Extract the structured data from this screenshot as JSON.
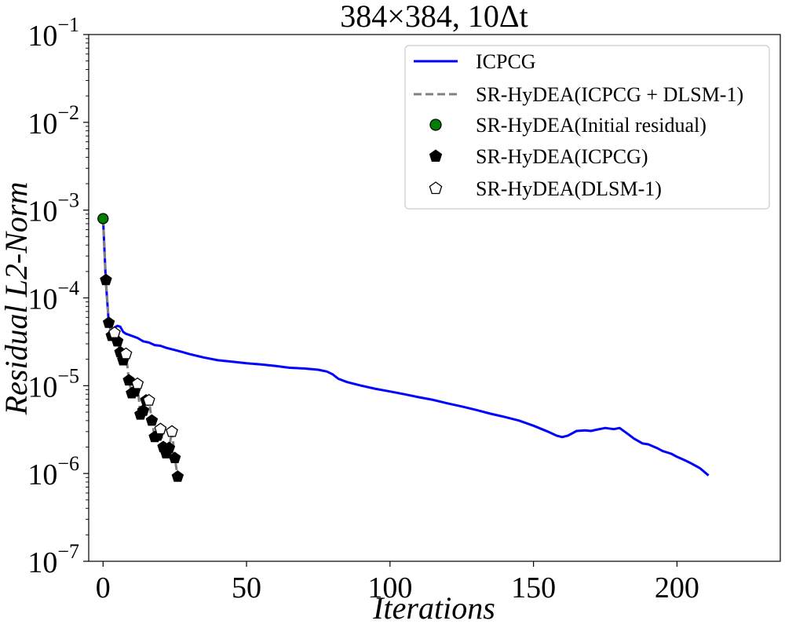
{
  "chart_data": {
    "type": "line",
    "title": "384×384, 10Δt",
    "xlabel": "Iterations",
    "ylabel": "Residual L2-Norm",
    "xlim": [
      -5,
      236
    ],
    "ylim_log10": [
      -7,
      -1
    ],
    "yscale": "log",
    "x_ticks": [
      0,
      50,
      100,
      150,
      200
    ],
    "x_tick_labels": [
      "0",
      "50",
      "100",
      "150",
      "200"
    ],
    "y_ticks_exp": [
      -7,
      -6,
      -5,
      -4,
      -3,
      -2,
      -1
    ],
    "y_tick_base": "10",
    "y_tick_exp_labels": [
      "−7",
      "−6",
      "−5",
      "−4",
      "−3",
      "−2",
      "−1"
    ],
    "legend_position": "top-right",
    "legend": [
      {
        "label": "ICPCG",
        "style": "solid-line",
        "color": "#0000ff"
      },
      {
        "label": "SR-HyDEA(ICPCG + DLSM-1)",
        "style": "dashed-line",
        "color": "#808080"
      },
      {
        "label": "SR-HyDEA(Initial residual)",
        "style": "circle",
        "color": "#008000"
      },
      {
        "label": "SR-HyDEA(ICPCG)",
        "style": "filled-pentagon",
        "color": "#000000"
      },
      {
        "label": "SR-HyDEA(DLSM-1)",
        "style": "open-pentagon",
        "color": "#ffffff"
      }
    ],
    "series": [
      {
        "name": "ICPCG",
        "color": "#0000ff",
        "x": [
          0,
          1,
          2,
          3,
          4,
          5,
          6,
          7,
          8,
          10,
          12,
          14,
          16,
          18,
          20,
          22,
          24,
          26,
          28,
          30,
          35,
          40,
          45,
          50,
          55,
          60,
          65,
          70,
          75,
          78,
          80,
          82,
          85,
          90,
          95,
          100,
          105,
          110,
          115,
          120,
          125,
          130,
          135,
          140,
          145,
          150,
          155,
          158,
          160,
          162,
          165,
          168,
          170,
          172,
          175,
          178,
          180,
          183,
          185,
          188,
          190,
          193,
          195,
          198,
          200,
          203,
          205,
          208,
          211
        ],
        "y": [
          0.0008,
          0.00015,
          5.2e-05,
          4e-05,
          4.6e-05,
          4.8e-05,
          4.7e-05,
          4.1e-05,
          3.9e-05,
          3.7e-05,
          3.5e-05,
          3.2e-05,
          3.1e-05,
          2.9e-05,
          2.85e-05,
          2.7e-05,
          2.6e-05,
          2.5e-05,
          2.4e-05,
          2.3e-05,
          2.1e-05,
          1.95e-05,
          1.88e-05,
          1.8e-05,
          1.75e-05,
          1.68e-05,
          1.6e-05,
          1.57e-05,
          1.52e-05,
          1.45e-05,
          1.35e-05,
          1.2e-05,
          1.1e-05,
          1e-05,
          9.2e-06,
          8.6e-06,
          8e-06,
          7.4e-06,
          6.9e-06,
          6.3e-06,
          5.8e-06,
          5.3e-06,
          4.8e-06,
          4.4e-06,
          4e-06,
          3.5e-06,
          3e-06,
          2.7e-06,
          2.6e-06,
          2.7e-06,
          3.05e-06,
          3.1e-06,
          3.05e-06,
          3.15e-06,
          3.3e-06,
          3.2e-06,
          3.3e-06,
          2.8e-06,
          2.5e-06,
          2.2e-06,
          2.15e-06,
          1.95e-06,
          1.8e-06,
          1.68e-06,
          1.55e-06,
          1.4e-06,
          1.3e-06,
          1.15e-06,
          9.5e-07
        ]
      },
      {
        "name": "SR-HyDEA(ICPCG + DLSM-1)",
        "color": "#808080",
        "x": [
          0,
          1,
          2,
          3,
          4,
          5,
          6,
          7,
          8,
          9,
          10,
          11,
          12,
          13,
          14,
          15,
          16,
          17,
          18,
          19,
          20,
          21,
          22,
          23,
          24,
          25,
          26
        ],
        "y": [
          0.0008,
          0.00016,
          5.2e-05,
          3.7e-05,
          4e-05,
          3.2e-05,
          2.4e-05,
          1.95e-05,
          2.3e-05,
          1.15e-05,
          8.2e-06,
          8.6e-06,
          1.05e-05,
          4.7e-06,
          5.2e-06,
          6.8e-06,
          6.8e-06,
          4e-06,
          2.6e-06,
          2.7e-06,
          3.2e-06,
          2e-06,
          1.7e-06,
          1.95e-06,
          3e-06,
          1.5e-06,
          9.2e-07
        ]
      },
      {
        "name": "SR-HyDEA(Initial residual)",
        "color": "#008000",
        "x": [
          0
        ],
        "y": [
          0.0008
        ]
      },
      {
        "name": "SR-HyDEA(ICPCG)",
        "color": "#000000",
        "x": [
          1,
          2,
          3,
          5,
          6,
          7,
          9,
          10,
          11,
          13,
          14,
          15,
          17,
          18,
          19,
          21,
          22,
          23,
          25,
          26
        ],
        "y": [
          0.00016,
          5.2e-05,
          3.7e-05,
          3.2e-05,
          2.4e-05,
          1.95e-05,
          1.15e-05,
          8.2e-06,
          8.6e-06,
          4.7e-06,
          5.2e-06,
          6.8e-06,
          4e-06,
          2.6e-06,
          2.7e-06,
          2e-06,
          1.7e-06,
          1.95e-06,
          1.5e-06,
          9.2e-07
        ]
      },
      {
        "name": "SR-HyDEA(DLSM-1)",
        "color": "#ffffff",
        "x": [
          4,
          8,
          12,
          16,
          20,
          24
        ],
        "y": [
          4e-05,
          2.3e-05,
          1.05e-05,
          6.8e-06,
          3.2e-06,
          3e-06
        ]
      }
    ]
  }
}
